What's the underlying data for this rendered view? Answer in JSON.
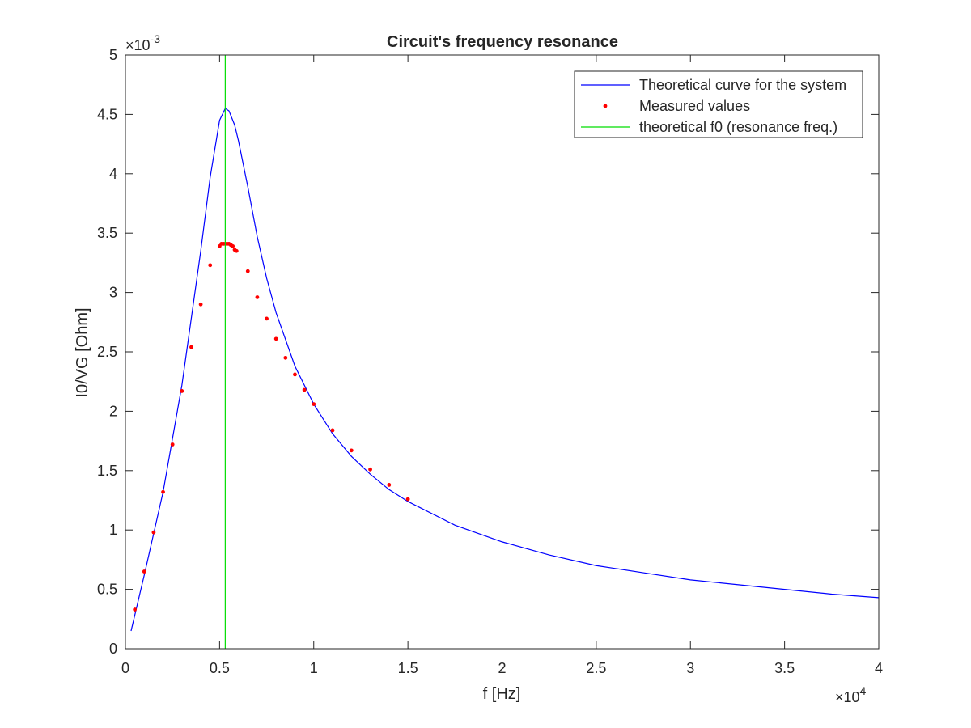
{
  "chart_data": {
    "type": "line",
    "title": "Circuit's frequency resonance",
    "xlabel": "f [Hz]",
    "ylabel": "I0/VG [Ohm]",
    "x_multiplier_label": "×10",
    "x_multiplier_exponent": "4",
    "y_multiplier_label": "×10",
    "y_multiplier_exponent": "-3",
    "xlim": [
      0,
      40000
    ],
    "ylim": [
      0,
      0.005
    ],
    "x_ticks": [
      0,
      5000,
      10000,
      15000,
      20000,
      25000,
      30000,
      35000,
      40000
    ],
    "x_tick_labels": [
      "0",
      "0.5",
      "1",
      "1.5",
      "2",
      "2.5",
      "3",
      "3.5",
      "4"
    ],
    "y_ticks": [
      0,
      0.0005,
      0.001,
      0.0015,
      0.002,
      0.0025,
      0.003,
      0.0035,
      0.004,
      0.0045,
      0.005
    ],
    "y_tick_labels": [
      "0",
      "0.5",
      "1",
      "1.5",
      "2",
      "2.5",
      "3",
      "3.5",
      "4",
      "4.5",
      "5"
    ],
    "grid": false,
    "legend_position": "top-right",
    "series": [
      {
        "name": "Theoretical curve for the system",
        "kind": "line",
        "color": "#0000ff",
        "x": [
          300,
          1000,
          2000,
          3000,
          4000,
          4500,
          5000,
          5300,
          5500,
          5800,
          6000,
          6500,
          7000,
          7500,
          8000,
          9000,
          10000,
          11000,
          12000,
          13000,
          14000,
          15000,
          17500,
          20000,
          22500,
          25000,
          27500,
          30000,
          32500,
          35000,
          37500,
          40000
        ],
        "y": [
          0.00015,
          0.00062,
          0.00132,
          0.00222,
          0.00335,
          0.00397,
          0.00445,
          0.00455,
          0.00453,
          0.00441,
          0.00428,
          0.00389,
          0.00347,
          0.00312,
          0.00283,
          0.00238,
          0.00206,
          0.00181,
          0.00162,
          0.00147,
          0.00134,
          0.00124,
          0.00104,
          0.0009,
          0.00079,
          0.0007,
          0.00064,
          0.00058,
          0.00054,
          0.0005,
          0.00046,
          0.00043
        ]
      },
      {
        "name": "Measured values",
        "kind": "scatter",
        "color": "#ff0000",
        "x": [
          500,
          1000,
          1500,
          2000,
          2500,
          3000,
          3500,
          4000,
          4500,
          5000,
          5100,
          5200,
          5300,
          5400,
          5500,
          5600,
          5700,
          5800,
          5900,
          6500,
          7000,
          7500,
          8000,
          8500,
          9000,
          9500,
          10000,
          11000,
          12000,
          13000,
          14000,
          15000
        ],
        "y": [
          0.00033,
          0.00065,
          0.00098,
          0.00132,
          0.00172,
          0.00217,
          0.00254,
          0.0029,
          0.00323,
          0.00339,
          0.00341,
          0.00341,
          0.00341,
          0.00341,
          0.00341,
          0.0034,
          0.00339,
          0.00336,
          0.00335,
          0.00318,
          0.00296,
          0.00278,
          0.00261,
          0.00245,
          0.00231,
          0.00218,
          0.00206,
          0.00184,
          0.00167,
          0.00151,
          0.00138,
          0.00126
        ]
      },
      {
        "name": "theoretical f0 (resonance freq.)",
        "kind": "vline",
        "color": "#00dd00",
        "x": [
          5300,
          5300
        ],
        "y": [
          0,
          0.005
        ]
      }
    ]
  }
}
